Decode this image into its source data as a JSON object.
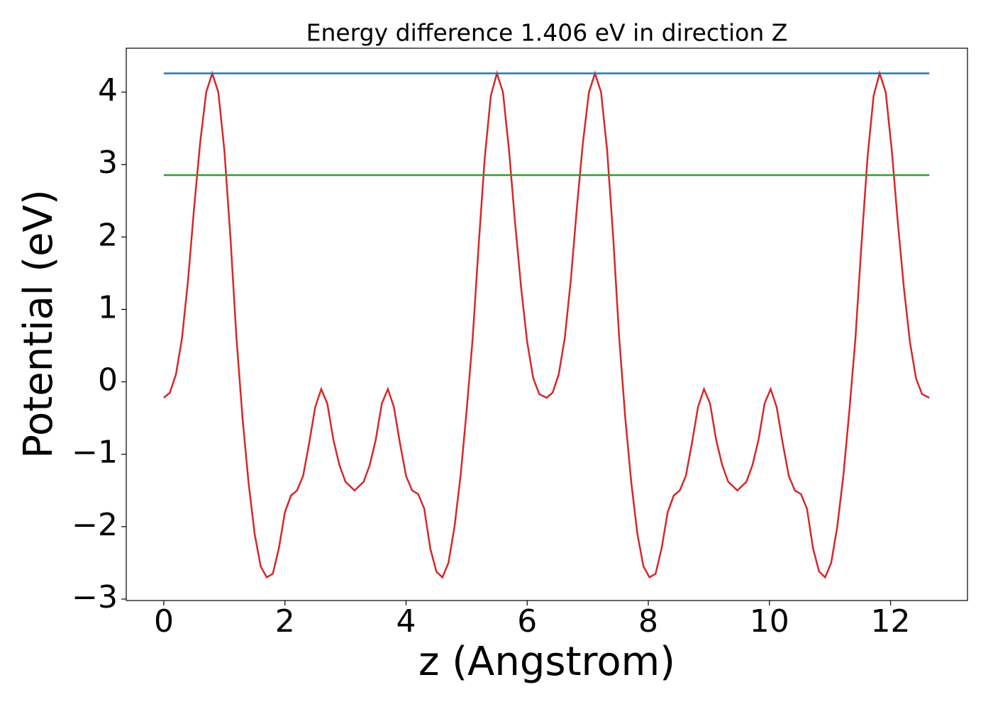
{
  "chart_data": {
    "type": "line",
    "title": "Energy difference 1.406 eV in direction Z",
    "xlabel": "z (Angstrom)",
    "ylabel": "Potential (eV)",
    "xlim": [
      -0.62,
      13.27
    ],
    "ylim": [
      -3.02,
      4.607
    ],
    "xticks": [
      0,
      2,
      4,
      6,
      8,
      10,
      12
    ],
    "yticks": [
      {
        "value": -3,
        "label": "−3"
      },
      {
        "value": -2,
        "label": "−2"
      },
      {
        "value": -1,
        "label": "−1"
      },
      0,
      1,
      2,
      3,
      4
    ],
    "series": [
      {
        "color": "#d62728",
        "x": [
          0,
          0.1,
          0.2,
          0.3,
          0.4,
          0.5,
          0.6,
          0.7,
          0.8,
          0.9,
          1.0,
          1.1,
          1.2,
          1.3,
          1.4,
          1.5,
          1.6,
          1.7,
          1.8,
          1.9,
          2.0,
          2.1,
          2.2,
          2.3,
          2.4,
          2.5,
          2.6,
          2.7,
          2.8,
          2.9,
          3.0,
          3.15,
          3.3,
          3.4,
          3.5,
          3.6,
          3.7,
          3.8,
          3.9,
          4.0,
          4.1,
          4.2,
          4.3,
          4.4,
          4.5,
          4.6,
          4.7,
          4.8,
          4.9,
          5.0,
          5.1,
          5.2,
          5.3,
          5.4,
          5.5,
          5.6,
          5.7,
          5.8,
          5.9,
          6.0,
          6.1,
          6.2,
          6.32,
          6.42,
          6.52,
          6.62,
          6.72,
          6.82,
          6.92,
          7.02,
          7.12,
          7.22,
          7.32,
          7.42,
          7.52,
          7.62,
          7.72,
          7.82,
          7.92,
          8.02,
          8.12,
          8.22,
          8.32,
          8.42,
          8.52,
          8.62,
          8.72,
          8.82,
          8.92,
          9.02,
          9.12,
          9.22,
          9.32,
          9.47,
          9.62,
          9.72,
          9.82,
          9.92,
          10.02,
          10.12,
          10.22,
          10.32,
          10.42,
          10.52,
          10.62,
          10.72,
          10.82,
          10.92,
          11.02,
          11.12,
          11.22,
          11.32,
          11.42,
          11.52,
          11.62,
          11.72,
          11.82,
          11.92,
          12.02,
          12.12,
          12.22,
          12.32,
          12.42,
          12.52,
          12.64
        ],
        "values": [
          -0.22,
          -0.15,
          0.1,
          0.6,
          1.4,
          2.4,
          3.3,
          4.0,
          4.26,
          4.0,
          3.2,
          2.0,
          0.6,
          -0.5,
          -1.4,
          -2.1,
          -2.55,
          -2.7,
          -2.65,
          -2.3,
          -1.8,
          -1.57,
          -1.5,
          -1.3,
          -0.85,
          -0.35,
          -0.1,
          -0.3,
          -0.8,
          -1.15,
          -1.38,
          -1.5,
          -1.38,
          -1.15,
          -0.8,
          -0.3,
          -0.1,
          -0.35,
          -0.85,
          -1.3,
          -1.5,
          -1.55,
          -1.75,
          -2.3,
          -2.62,
          -2.7,
          -2.5,
          -2.0,
          -1.3,
          -0.4,
          0.6,
          1.9,
          3.1,
          3.95,
          4.26,
          4.0,
          3.2,
          2.2,
          1.3,
          0.55,
          0.05,
          -0.17,
          -0.22,
          -0.15,
          0.1,
          0.6,
          1.4,
          2.4,
          3.3,
          4.0,
          4.26,
          4.0,
          3.2,
          2.0,
          0.6,
          -0.5,
          -1.4,
          -2.1,
          -2.55,
          -2.7,
          -2.65,
          -2.3,
          -1.8,
          -1.57,
          -1.5,
          -1.3,
          -0.85,
          -0.35,
          -0.1,
          -0.3,
          -0.8,
          -1.15,
          -1.38,
          -1.5,
          -1.38,
          -1.15,
          -0.8,
          -0.3,
          -0.1,
          -0.35,
          -0.85,
          -1.3,
          -1.5,
          -1.55,
          -1.75,
          -2.3,
          -2.62,
          -2.7,
          -2.5,
          -2.0,
          -1.3,
          -0.4,
          0.6,
          1.9,
          3.1,
          3.95,
          4.26,
          4.0,
          3.2,
          2.2,
          1.3,
          0.55,
          0.05,
          -0.17,
          -0.22
        ]
      },
      {
        "color": "#1f77b4",
        "x": [
          0,
          12.64
        ],
        "values": [
          4.26,
          4.26
        ]
      },
      {
        "color": "#2ca02c",
        "x": [
          0,
          12.64
        ],
        "values": [
          2.854,
          2.854
        ]
      }
    ]
  }
}
